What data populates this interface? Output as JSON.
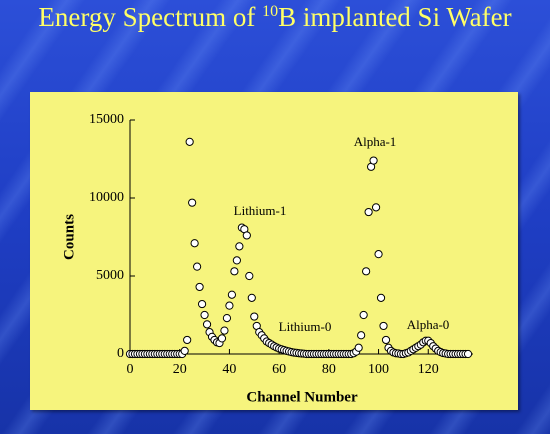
{
  "chart_data": {
    "type": "scatter",
    "title_parts": [
      "Energy Spectrum of ",
      "10",
      "B implanted Si Wafer"
    ],
    "x_label": "Channel Number",
    "y_label": "Counts",
    "annotations": [
      "Lithium-1",
      "Lithium-0",
      "Alpha-1",
      "Alpha-0"
    ],
    "xlim": [
      0,
      138
    ],
    "ylim": [
      0,
      15000
    ],
    "xticks": [
      0,
      20,
      40,
      60,
      80,
      100,
      120
    ],
    "yticks": [
      0,
      5000,
      10000,
      15000
    ],
    "marker_fill": "#ffffff",
    "marker_stroke": "#000000",
    "x": [
      0,
      1,
      2,
      3,
      4,
      5,
      6,
      7,
      8,
      9,
      10,
      11,
      12,
      13,
      14,
      15,
      16,
      17,
      18,
      19,
      20,
      21,
      22,
      23,
      24,
      25,
      26,
      27,
      28,
      29,
      30,
      31,
      32,
      33,
      34,
      35,
      36,
      37,
      38,
      39,
      40,
      41,
      42,
      43,
      44,
      45,
      46,
      47,
      48,
      49,
      50,
      51,
      52,
      53,
      54,
      55,
      56,
      57,
      58,
      59,
      60,
      61,
      62,
      63,
      64,
      65,
      66,
      67,
      68,
      69,
      70,
      71,
      72,
      73,
      74,
      75,
      76,
      77,
      78,
      79,
      80,
      81,
      82,
      83,
      84,
      85,
      86,
      87,
      88,
      89,
      90,
      91,
      92,
      93,
      94,
      95,
      96,
      97,
      98,
      99,
      100,
      101,
      102,
      103,
      104,
      105,
      106,
      107,
      108,
      109,
      110,
      111,
      112,
      113,
      114,
      115,
      116,
      117,
      118,
      119,
      120,
      121,
      122,
      123,
      124,
      125,
      126,
      127,
      128,
      129,
      130,
      131,
      132,
      133,
      134,
      135,
      136
    ],
    "values": [
      0,
      0,
      0,
      0,
      0,
      0,
      0,
      0,
      0,
      0,
      0,
      0,
      0,
      0,
      0,
      0,
      0,
      0,
      0,
      0,
      0,
      0,
      200,
      900,
      13600,
      9700,
      7100,
      5600,
      4300,
      3200,
      2500,
      1900,
      1400,
      1100,
      900,
      750,
      700,
      1000,
      1500,
      2300,
      3100,
      3800,
      5300,
      6000,
      6900,
      8100,
      8000,
      7600,
      5000,
      3600,
      2400,
      1800,
      1400,
      1200,
      1000,
      800,
      700,
      600,
      500,
      420,
      350,
      300,
      250,
      200,
      160,
      120,
      90,
      70,
      50,
      30,
      20,
      0,
      0,
      0,
      0,
      0,
      0,
      0,
      0,
      0,
      0,
      0,
      0,
      0,
      0,
      0,
      0,
      0,
      0,
      0,
      50,
      150,
      400,
      1200,
      2500,
      5300,
      9100,
      12000,
      12400,
      9400,
      6400,
      3600,
      1800,
      900,
      400,
      200,
      100,
      50,
      30,
      0,
      0,
      50,
      100,
      200,
      300,
      400,
      500,
      600,
      750,
      850,
      850,
      700,
      500,
      350,
      200,
      120,
      60,
      30,
      0,
      0,
      0,
      0,
      0,
      0,
      0,
      0,
      0
    ]
  }
}
